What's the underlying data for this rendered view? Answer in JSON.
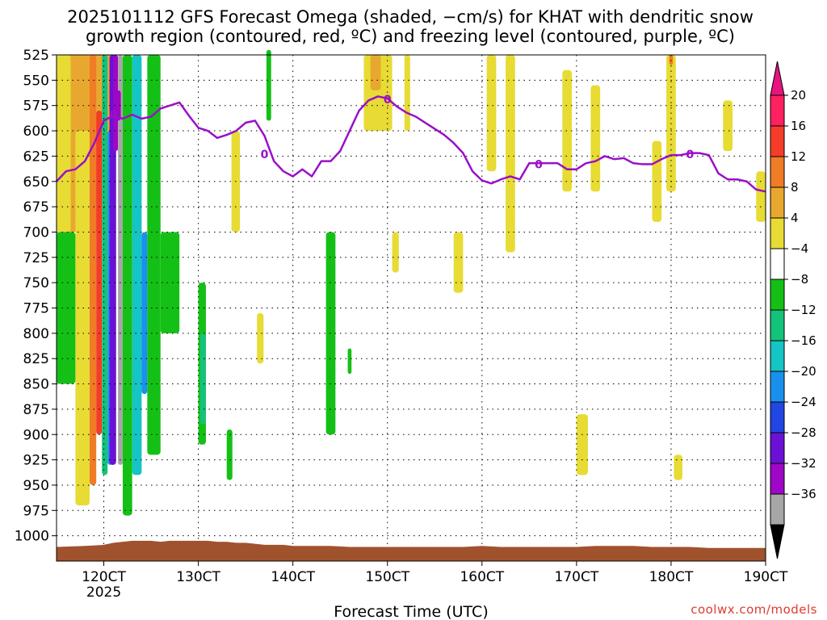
{
  "chart_data": {
    "type": "heatmap",
    "title_line1": "2025101112 GFS Forecast Omega (shaded, −cm/s) for KHAT with dendritic snow",
    "title_line2": "growth region (contoured, red, ºC) and freezing level (contoured, purple, ºC)",
    "xlabel": "Forecast Time (UTC)",
    "ylabel": "",
    "x_unit": "forecast hour",
    "xlim": [
      115,
      190
    ],
    "ylim": [
      1025,
      525
    ],
    "x_ticks": [
      {
        "value": 120,
        "label": "120CT",
        "sublabel": "2025"
      },
      {
        "value": 130,
        "label": "130CT"
      },
      {
        "value": 140,
        "label": "140CT"
      },
      {
        "value": 150,
        "label": "150CT"
      },
      {
        "value": 160,
        "label": "160CT"
      },
      {
        "value": 170,
        "label": "170CT"
      },
      {
        "value": 180,
        "label": "180CT"
      },
      {
        "value": 190,
        "label": "190CT"
      }
    ],
    "y_ticks": [
      525,
      550,
      575,
      600,
      625,
      650,
      675,
      700,
      725,
      750,
      775,
      800,
      825,
      850,
      875,
      900,
      925,
      950,
      975,
      1000
    ],
    "colorbar": {
      "levels": [
        20,
        16,
        12,
        8,
        4,
        -4,
        -8,
        -12,
        -16,
        -20,
        -24,
        -28,
        -32,
        -36
      ],
      "colors": [
        "#ff2060",
        "#f53c28",
        "#f07c25",
        "#e8a82f",
        "#e7db34",
        "#ffffff",
        "#15c016",
        "#14c37a",
        "#15c4c4",
        "#1a90ee",
        "#2146e4",
        "#6b11d6",
        "#9e07c6",
        "#a6a6a6"
      ],
      "top_arrow_color": "#e7137f",
      "bottom_arrow_color": "#000000"
    },
    "freezing_level": {
      "name": "freezing level 0ºC",
      "color": "#9a10c8",
      "label": "0",
      "x": [
        115,
        116,
        117,
        118,
        119,
        120,
        121,
        122,
        123,
        124,
        125,
        126,
        127,
        128,
        129,
        130,
        131,
        132,
        133,
        134,
        135,
        136,
        137,
        138,
        139,
        140,
        141,
        142,
        143,
        144,
        145,
        146,
        147,
        148,
        149,
        150,
        151,
        152,
        153,
        154,
        155,
        156,
        157,
        158,
        159,
        160,
        161,
        162,
        163,
        164,
        165,
        166,
        167,
        168,
        169,
        170,
        171,
        172,
        173,
        174,
        175,
        176,
        177,
        178,
        179,
        180,
        181,
        182,
        183,
        184,
        185,
        186,
        187,
        188,
        189,
        190
      ],
      "y": [
        650,
        640,
        638,
        630,
        612,
        590,
        585,
        588,
        584,
        588,
        586,
        578,
        575,
        572,
        585,
        597,
        600,
        607,
        604,
        600,
        592,
        590,
        605,
        630,
        640,
        645,
        638,
        645,
        630,
        630,
        620,
        600,
        580,
        570,
        566,
        568,
        576,
        582,
        586,
        592,
        598,
        604,
        612,
        622,
        640,
        649,
        652,
        648,
        645,
        648,
        632,
        632,
        632,
        632,
        638,
        638,
        632,
        630,
        625,
        628,
        627,
        632,
        633,
        633,
        628,
        624,
        624,
        622,
        622,
        624,
        642,
        648,
        648,
        650,
        658,
        660
      ],
      "label_points": [
        [
          121,
          584
        ],
        [
          137,
          623
        ],
        [
          150,
          569
        ],
        [
          166,
          633
        ],
        [
          182,
          623
        ]
      ]
    },
    "shaded_regions": [
      {
        "level": 8,
        "x": [
          115.5,
          121
        ],
        "p": [
          525,
          700
        ]
      },
      {
        "level": 4,
        "x": [
          115,
          116.5
        ],
        "p": [
          525,
          700
        ]
      },
      {
        "level": -8,
        "x": [
          115,
          117
        ],
        "p": [
          700,
          850
        ]
      },
      {
        "level": 4,
        "x": [
          117,
          118.5
        ],
        "p": [
          600,
          970
        ]
      },
      {
        "level": 12,
        "x": [
          118.5,
          119.2
        ],
        "p": [
          525,
          950
        ]
      },
      {
        "level": 16,
        "x": [
          119.2,
          119.8
        ],
        "p": [
          580,
          900
        ]
      },
      {
        "level": -12,
        "x": [
          119.8,
          120.4
        ],
        "p": [
          525,
          940
        ]
      },
      {
        "level": -20,
        "x": [
          120.4,
          121.0
        ],
        "p": [
          600,
          930
        ]
      },
      {
        "level": -28,
        "x": [
          120.6,
          121.3
        ],
        "p": [
          525,
          930
        ]
      },
      {
        "level": -32,
        "x": [
          121.0,
          121.5
        ],
        "p": [
          525,
          620
        ]
      },
      {
        "level": -36,
        "x": [
          121.5,
          122.0
        ],
        "p": [
          525,
          930
        ]
      },
      {
        "level": -32,
        "x": [
          121.2,
          121.8
        ],
        "p": [
          560,
          590
        ]
      },
      {
        "level": -8,
        "x": [
          122.0,
          123.0
        ],
        "p": [
          525,
          980
        ]
      },
      {
        "level": -16,
        "x": [
          123.0,
          124.0
        ],
        "p": [
          525,
          940
        ]
      },
      {
        "level": -20,
        "x": [
          124.0,
          124.6
        ],
        "p": [
          700,
          860
        ]
      },
      {
        "level": -8,
        "x": [
          124.6,
          126
        ],
        "p": [
          525,
          920
        ]
      },
      {
        "level": -8,
        "x": [
          126,
          128
        ],
        "p": [
          700,
          800
        ]
      },
      {
        "level": -8,
        "x": [
          130,
          130.8
        ],
        "p": [
          750,
          910
        ]
      },
      {
        "level": -12,
        "x": [
          130.2,
          130.8
        ],
        "p": [
          800,
          890
        ]
      },
      {
        "level": -8,
        "x": [
          133,
          133.6
        ],
        "p": [
          895,
          945
        ]
      },
      {
        "level": -8,
        "x": [
          137.2,
          137.7
        ],
        "p": [
          520,
          590
        ]
      },
      {
        "level": 4,
        "x": [
          136.2,
          136.9
        ],
        "p": [
          780,
          830
        ]
      },
      {
        "level": 4,
        "x": [
          133.5,
          134.4
        ],
        "p": [
          600,
          700
        ]
      },
      {
        "level": -8,
        "x": [
          143.5,
          144.5
        ],
        "p": [
          700,
          900
        ]
      },
      {
        "level": -8,
        "x": [
          145.8,
          146.2
        ],
        "p": [
          815,
          840
        ]
      },
      {
        "level": 4,
        "x": [
          147.5,
          150.5
        ],
        "p": [
          525,
          600
        ]
      },
      {
        "level": 8,
        "x": [
          148.2,
          149.3
        ],
        "p": [
          525,
          560
        ]
      },
      {
        "level": 4,
        "x": [
          150.5,
          151.2
        ],
        "p": [
          700,
          740
        ]
      },
      {
        "level": 4,
        "x": [
          151.8,
          152.4
        ],
        "p": [
          525,
          600
        ]
      },
      {
        "level": 4,
        "x": [
          157,
          158
        ],
        "p": [
          700,
          760
        ]
      },
      {
        "level": 4,
        "x": [
          160.5,
          161.5
        ],
        "p": [
          525,
          640
        ]
      },
      {
        "level": 4,
        "x": [
          162.5,
          163.5
        ],
        "p": [
          525,
          720
        ]
      },
      {
        "level": 4,
        "x": [
          168.5,
          169.5
        ],
        "p": [
          540,
          660
        ]
      },
      {
        "level": 4,
        "x": [
          171.5,
          172.5
        ],
        "p": [
          555,
          660
        ]
      },
      {
        "level": 4,
        "x": [
          170,
          171.2
        ],
        "p": [
          880,
          940
        ]
      },
      {
        "level": 4,
        "x": [
          179.5,
          180.5
        ],
        "p": [
          525,
          660
        ]
      },
      {
        "level": 12,
        "x": [
          179.8,
          180.2
        ],
        "p": [
          525,
          535
        ]
      },
      {
        "level": 4,
        "x": [
          178,
          179
        ],
        "p": [
          610,
          690
        ]
      },
      {
        "level": 4,
        "x": [
          180.3,
          181.2
        ],
        "p": [
          920,
          945
        ]
      },
      {
        "level": 4,
        "x": [
          185.5,
          186.5
        ],
        "p": [
          570,
          620
        ]
      },
      {
        "level": 4,
        "x": [
          189,
          190
        ],
        "p": [
          640,
          690
        ]
      }
    ],
    "terrain": {
      "name": "surface pressure (below ground)",
      "color": "#a0522d",
      "x": [
        115,
        118,
        120,
        121,
        122,
        123,
        124,
        125,
        126,
        127,
        128,
        129,
        130,
        131,
        132,
        133,
        134,
        135,
        136,
        137,
        138,
        139,
        140,
        142,
        144,
        146,
        148,
        150,
        152,
        154,
        156,
        158,
        160,
        162,
        164,
        166,
        168,
        170,
        172,
        174,
        176,
        178,
        180,
        182,
        184,
        186,
        188,
        190
      ],
      "p": [
        1011,
        1010,
        1009,
        1007,
        1006,
        1005,
        1005,
        1005,
        1006,
        1005,
        1005,
        1005,
        1005,
        1005,
        1006,
        1006,
        1007,
        1007,
        1008,
        1009,
        1009,
        1009,
        1010,
        1010,
        1010,
        1011,
        1011,
        1011,
        1011,
        1011,
        1011,
        1011,
        1010,
        1011,
        1011,
        1011,
        1011,
        1011,
        1010,
        1010,
        1010,
        1011,
        1011,
        1011,
        1012,
        1012,
        1012,
        1012
      ]
    }
  },
  "credit": "coolwx.com/models"
}
